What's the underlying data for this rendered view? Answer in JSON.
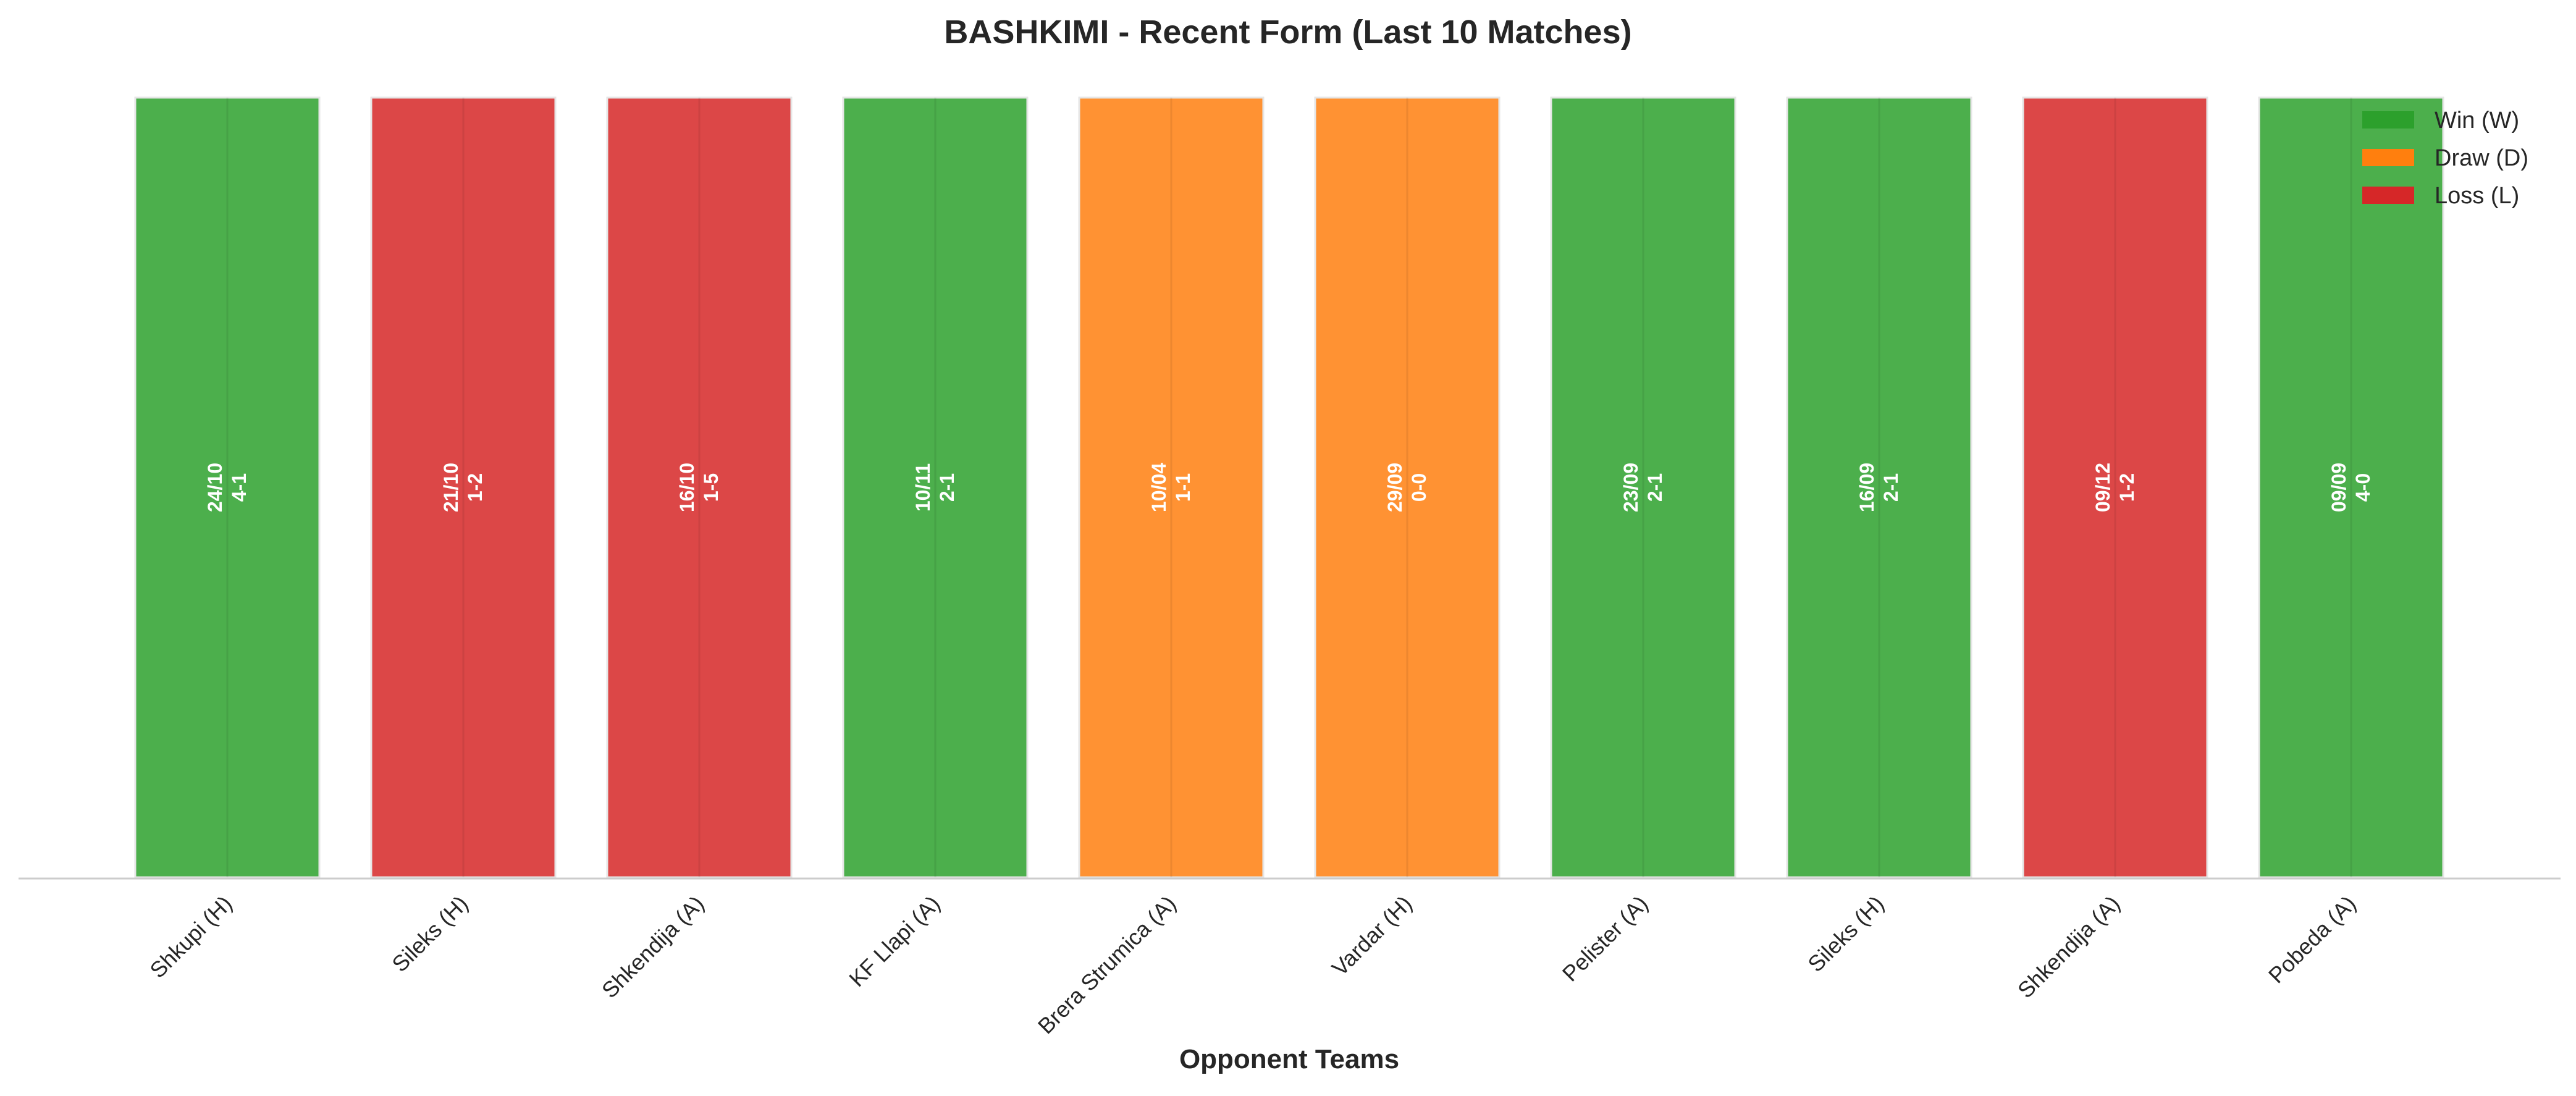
{
  "chart_data": {
    "type": "bar",
    "title": "BASHKIMI - Recent Form (Last 10 Matches)",
    "xlabel": "Opponent Teams",
    "ylabel": "",
    "categories": [
      "Shkupi (H)",
      "Sileks (H)",
      "Shkendija (A)",
      "KF Llapi (A)",
      "Brera Strumica (A)",
      "Vardar (H)",
      "Pelister (A)",
      "Sileks (H)",
      "Shkendija (A)",
      "Pobeda (A)"
    ],
    "values": [
      1,
      1,
      1,
      1,
      1,
      1,
      1,
      1,
      1,
      1
    ],
    "results": [
      "W",
      "L",
      "L",
      "W",
      "D",
      "D",
      "W",
      "W",
      "L",
      "W"
    ],
    "dates": [
      "24/10",
      "21/10",
      "16/10",
      "10/11",
      "10/04",
      "29/09",
      "23/09",
      "16/09",
      "09/12",
      "09/09"
    ],
    "scores": [
      "4-1",
      "1-2",
      "1-5",
      "2-1",
      "1-1",
      "0-0",
      "2-1",
      "2-1",
      "1-2",
      "4-0"
    ],
    "ylim": [
      0,
      1
    ],
    "grid": false,
    "legend": {
      "placement": "top-right",
      "entries": [
        {
          "key": "W",
          "label": "Win (W)",
          "color": "#2ca02c"
        },
        {
          "key": "D",
          "label": "Draw (D)",
          "color": "#ff7f0e"
        },
        {
          "key": "L",
          "label": "Loss (L)",
          "color": "#d62728"
        }
      ]
    },
    "colors": {
      "W": "#4caf4c",
      "D": "#ff9233",
      "L": "#dc4747"
    }
  }
}
